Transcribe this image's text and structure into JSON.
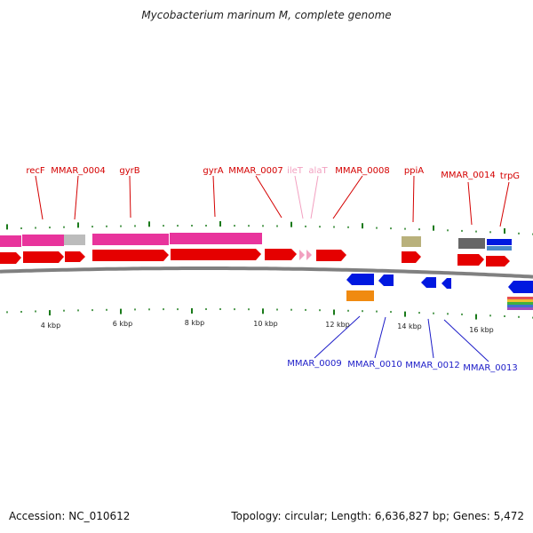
{
  "title": "Mycobacterium marinum M, complete genome",
  "footer": {
    "accession": "Accession: NC_010612",
    "summary": "Topology: circular; Length: 6,636,827 bp; Genes: 5,472"
  },
  "scale": {
    "labels": [
      "4 kbp",
      "6 kbp",
      "8 kbp",
      "10 kbp",
      "12 kbp",
      "14 kbp",
      "16 kbp"
    ]
  },
  "colors": {
    "forward_gene": "#e50000",
    "reverse_gene": "#0018e0",
    "forward_label": "#d40000",
    "reverse_label": "#1c1cc8",
    "trna_label": "#f2a0c0",
    "backbone": "#808080",
    "tick": "#1a7a1a"
  },
  "forward_labels": [
    "recF",
    "MMAR_0004",
    "gyrB",
    "gyrA",
    "MMAR_0007",
    "ileT",
    "alaT",
    "MMAR_0008",
    "ppiA",
    "MMAR_0014",
    "trpG"
  ],
  "reverse_labels": [
    "MMAR_0009",
    "MMAR_0010",
    "MMAR_0012",
    "MMAR_0013"
  ]
}
